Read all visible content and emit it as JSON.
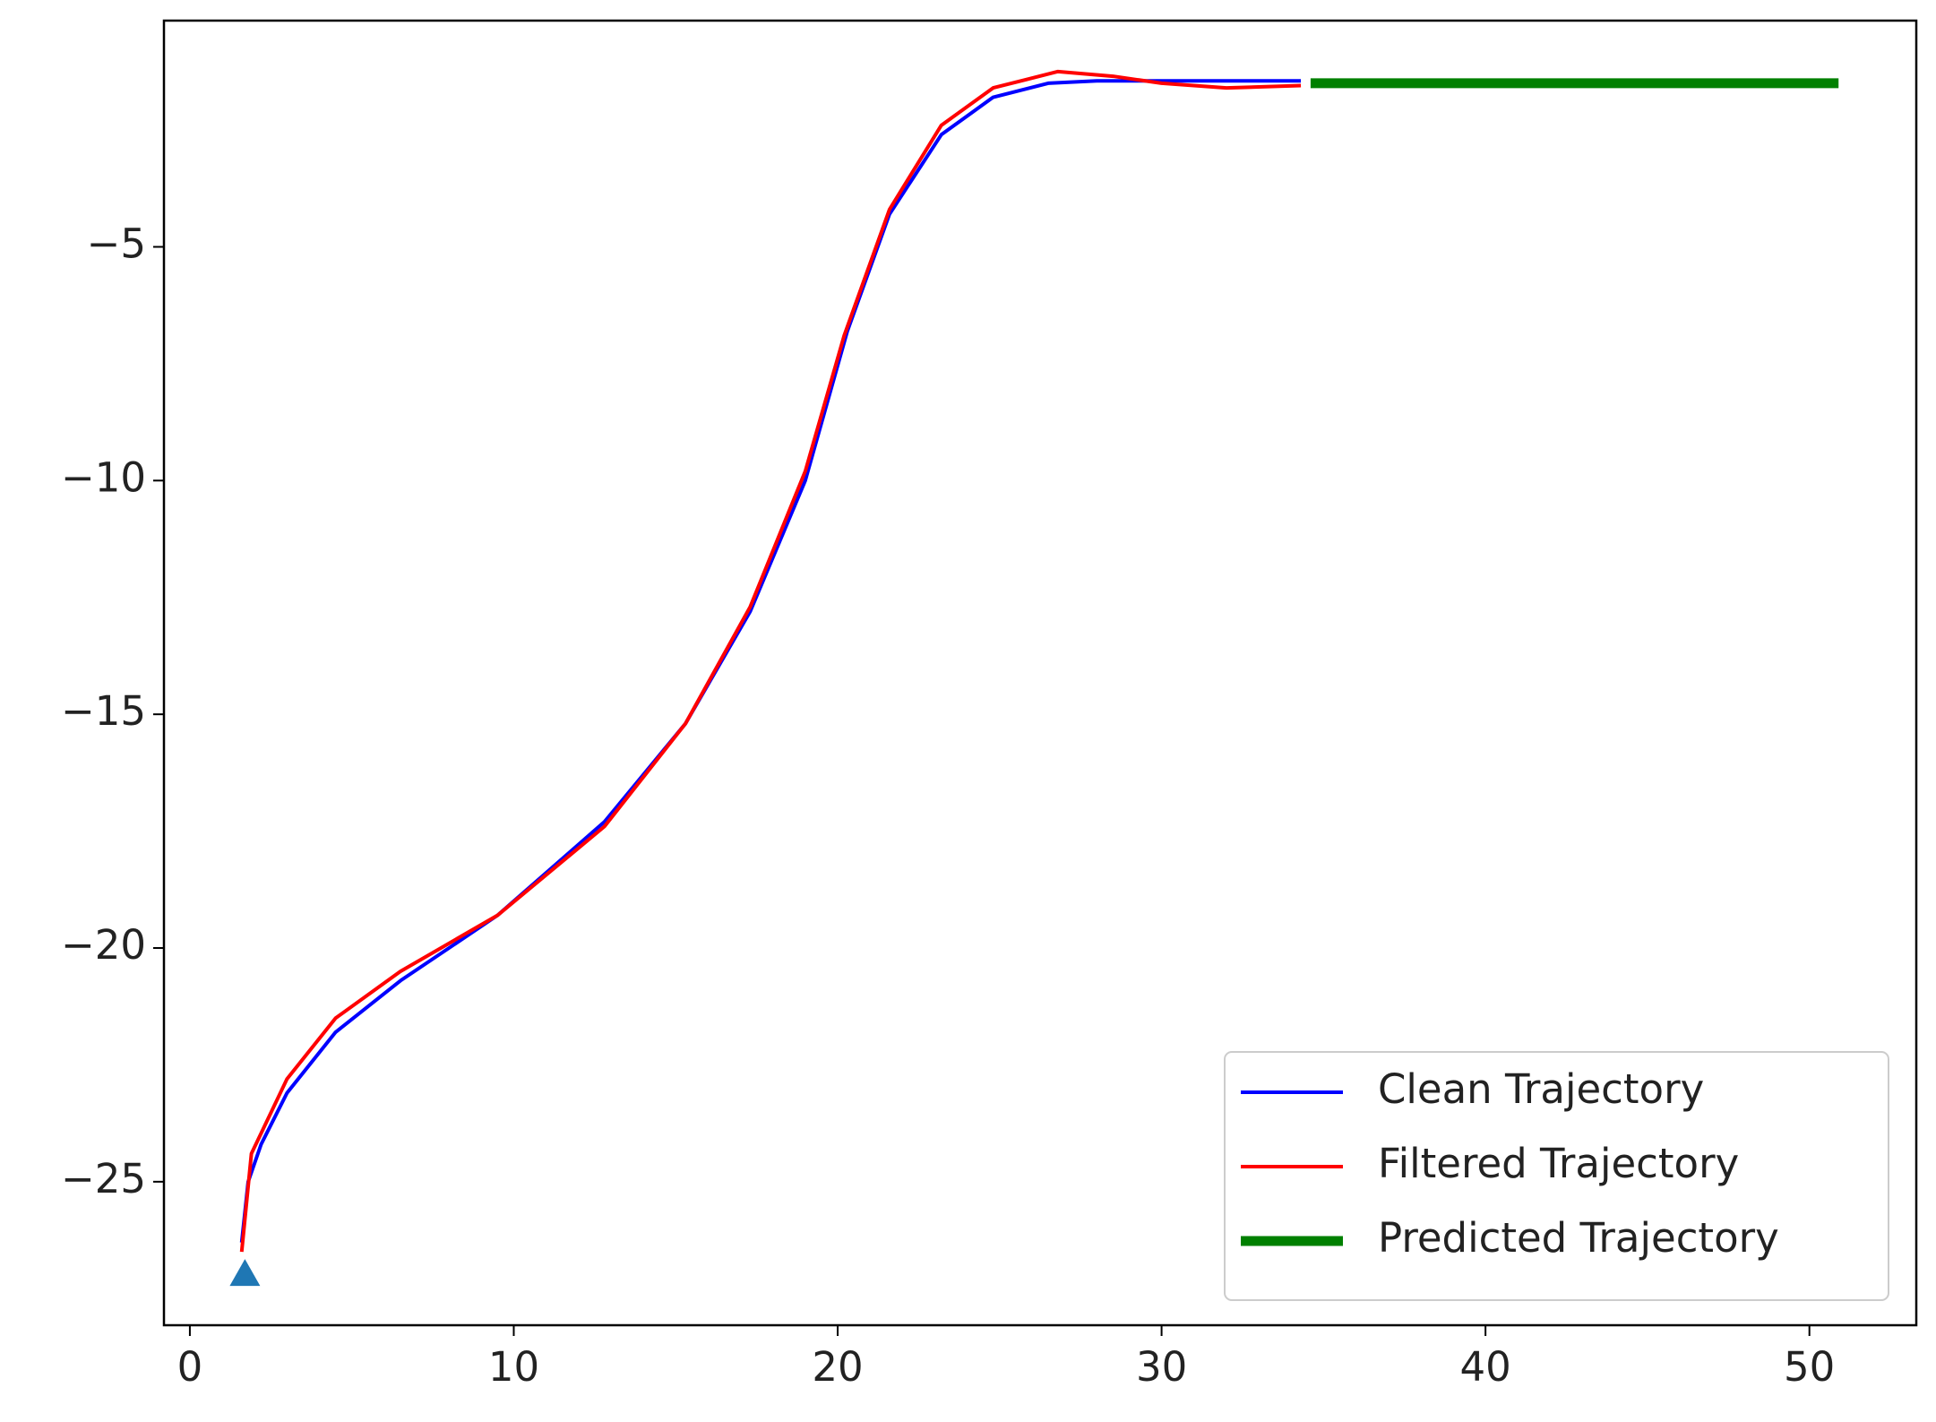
{
  "chart_data": {
    "type": "line",
    "xlim": [
      -0.8,
      53.3
    ],
    "ylim": [
      -28.07,
      -0.16
    ],
    "xticks": [
      0,
      10,
      20,
      30,
      40,
      50
    ],
    "yticks": [
      {
        "value": -5,
        "label": "−5"
      },
      {
        "value": -10,
        "label": "−10"
      },
      {
        "value": -15,
        "label": "−15"
      },
      {
        "value": -20,
        "label": "−20"
      },
      {
        "value": -25,
        "label": "−25"
      }
    ],
    "legend": "lower right",
    "series": [
      {
        "name": "Clean Trajectory",
        "color": "#0000ff",
        "width": 4,
        "x": [
          1.6,
          1.8,
          2.2,
          3,
          4.5,
          6.5,
          9.5,
          12.8,
          15.3,
          17.3,
          19,
          20.3,
          21.6,
          23.2,
          24.8,
          26.5,
          28,
          34.3
        ],
        "values": [
          -26.3,
          -25,
          -24.2,
          -23.1,
          -21.8,
          -20.7,
          -19.3,
          -17.3,
          -15.2,
          -12.8,
          -10,
          -6.8,
          -4.3,
          -2.6,
          -1.8,
          -1.5,
          -1.45,
          -1.45
        ]
      },
      {
        "name": "Filtered Trajectory",
        "color": "#ff0000",
        "width": 4,
        "x": [
          1.6,
          1.9,
          3,
          4.5,
          6.5,
          9.5,
          12.8,
          15.3,
          17.3,
          19,
          20.2,
          21.6,
          23.2,
          24.8,
          26.8,
          28.5,
          30,
          32,
          34.3
        ],
        "values": [
          -26.5,
          -24.4,
          -22.8,
          -21.5,
          -20.5,
          -19.3,
          -17.4,
          -15.2,
          -12.7,
          -9.8,
          -6.9,
          -4.2,
          -2.4,
          -1.6,
          -1.25,
          -1.35,
          -1.5,
          -1.6,
          -1.55
        ]
      },
      {
        "name": "Predicted Trajectory",
        "color": "#008000",
        "width": 11,
        "x": [
          34.6,
          50.9
        ],
        "values": [
          -1.5,
          -1.5
        ]
      }
    ],
    "start_marker": {
      "x": 1.7,
      "y": -27,
      "color": "#1f77b4"
    }
  }
}
